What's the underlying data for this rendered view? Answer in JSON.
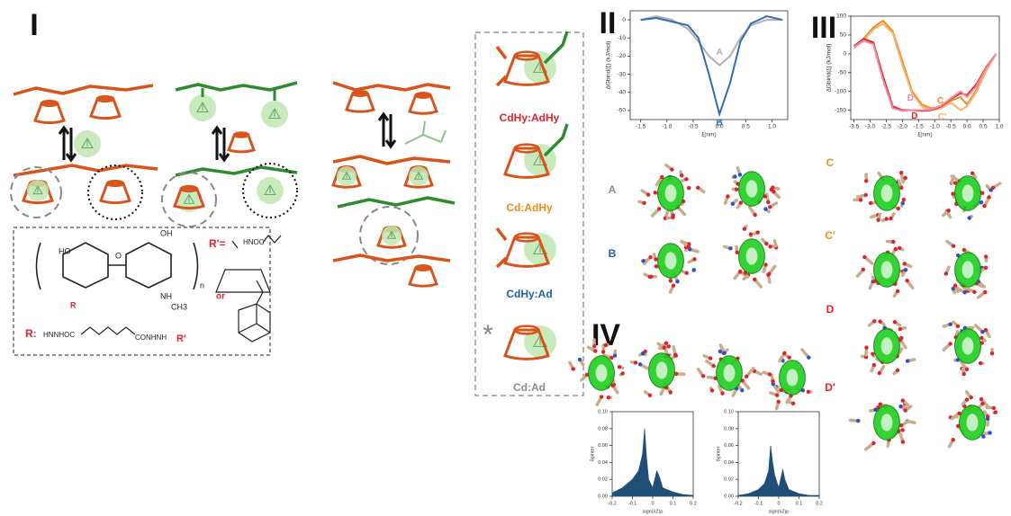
{
  "panel_labels": [
    "I",
    "II",
    "III",
    "IV"
  ],
  "scheme": {
    "r_prime_label": "R′=",
    "r_prime_group": "HNOC",
    "or": "or",
    "r_label": "R:",
    "r_group_left": "HNNHOC",
    "r_group_right": "CONHNH",
    "r_group_end": "R′",
    "sugar_labels": [
      "HO",
      "OH",
      "O",
      "NH",
      "CH3",
      "R",
      "n"
    ]
  },
  "complexes": [
    {
      "label": "CdHy:AdHy",
      "color": "#e3232b"
    },
    {
      "label": "Cd:AdHy",
      "color": "#f08a1c"
    },
    {
      "label": "CdHy:Ad",
      "color": "#1f5fa8"
    },
    {
      "label": "Cd:Ad",
      "color": "#8c8c8c"
    }
  ],
  "asterisk": "*",
  "structure_labels": [
    {
      "label": "A",
      "color": "#8c8c8c"
    },
    {
      "label": "B",
      "color": "#1f5fa8"
    },
    {
      "label": "C",
      "color": "#f08a1c"
    },
    {
      "label": "C′",
      "color": "#f08a1c"
    },
    {
      "label": "D",
      "color": "#e3232b"
    },
    {
      "label": "D′",
      "color": "#e3232b"
    }
  ],
  "chart_data": [
    {
      "type": "line",
      "ylabel": "ΔGbind(ξ) (kJ/mol)",
      "xlabel": "ξ(nm)",
      "x": [
        -1.5,
        -1.2,
        -0.9,
        -0.6,
        -0.4,
        -0.2,
        0,
        0.2,
        0.4,
        0.6,
        0.9,
        1.2
      ],
      "series": [
        {
          "name": "A",
          "color": "#b0b0b0",
          "values": [
            0,
            2,
            0,
            -5,
            -12,
            -20,
            -25,
            -20,
            -10,
            -3,
            0,
            0
          ]
        },
        {
          "name": "B",
          "color": "#2f6db5",
          "values": [
            0,
            1,
            -1,
            -3,
            -10,
            -30,
            -52,
            -35,
            -12,
            -2,
            2,
            0
          ]
        }
      ],
      "xlim": [
        -1.7,
        1.3
      ],
      "ylim": [
        -55,
        5
      ],
      "xticks": [
        -1.5,
        {
          "value": -1,
          "label": "-1.0"
        },
        -0.5,
        {
          "value": 0,
          "label": "0.0"
        },
        0.5,
        {
          "value": 1,
          "label": "1.0"
        }
      ],
      "yticks": [
        0,
        -10,
        -20,
        -30,
        -40,
        -50
      ]
    },
    {
      "type": "line",
      "ylabel": "ΔGbind(ξ) (kJ/mol)",
      "xlabel": "ξ(nm)",
      "x": [
        -3.5,
        -3.2,
        -2.9,
        -2.6,
        -2.3,
        -2.0,
        -1.7,
        -1.4,
        -1.1,
        -0.8,
        -0.5,
        -0.2,
        0,
        0.3,
        0.6,
        0.9
      ],
      "series": [
        {
          "name": "C",
          "color": "#f08a1c",
          "values": [
            20,
            40,
            70,
            88,
            60,
            -20,
            -100,
            -135,
            -145,
            -140,
            -125,
            -115,
            -135,
            -95,
            -40,
            0
          ]
        },
        {
          "name": "C′",
          "color": "#f7b36a",
          "values": [
            15,
            35,
            65,
            80,
            55,
            -30,
            -105,
            -140,
            -150,
            -145,
            -130,
            -150,
            -140,
            -100,
            -45,
            0
          ]
        },
        {
          "name": "D",
          "color": "#e3232b",
          "values": [
            20,
            40,
            30,
            -60,
            -140,
            -150,
            -150,
            -152,
            -150,
            -140,
            -120,
            -105,
            -110,
            -80,
            -35,
            0
          ]
        },
        {
          "name": "D′",
          "color": "#f28aa0",
          "values": [
            18,
            35,
            25,
            -70,
            -145,
            -152,
            -150,
            -150,
            -148,
            -138,
            -118,
            -100,
            -115,
            -85,
            -38,
            0
          ]
        }
      ],
      "xlim": [
        -3.6,
        1.0
      ],
      "ylim": [
        -175,
        100
      ],
      "xticks": [
        -3.5,
        {
          "value": -3,
          "label": "-3.0"
        },
        -2.5,
        {
          "value": -2,
          "label": "-2.0"
        },
        -1.5,
        {
          "value": -1,
          "label": "-1.0"
        },
        -0.5,
        {
          "value": 0,
          "label": "0.0"
        },
        0.5,
        {
          "value": 1,
          "label": "1.0"
        }
      ],
      "yticks": [
        100,
        50,
        0,
        -50,
        -100,
        -150
      ]
    },
    {
      "type": "area",
      "ylabel": "δginter",
      "xlabel": "sign(λ2)ρ",
      "x": [
        -0.2,
        -0.15,
        -0.1,
        -0.07,
        -0.05,
        -0.04,
        -0.03,
        -0.02,
        0,
        0.02,
        0.03,
        0.05,
        0.1,
        0.15,
        0.2
      ],
      "series": [
        {
          "color": "#1f4e79",
          "values": [
            0.004,
            0.01,
            0.02,
            0.03,
            0.05,
            0.08,
            0.045,
            0.02,
            0.01,
            0.03,
            0.025,
            0.01,
            0.005,
            0.002,
            0.001
          ]
        }
      ],
      "xlim": [
        -0.2,
        0.2
      ],
      "ylim": [
        0,
        0.1
      ],
      "xticks": [
        -0.2,
        -0.1,
        0,
        0.1,
        0.2
      ],
      "yticks": [
        {
          "value": 0,
          "label": "0.00"
        },
        0.02,
        0.04,
        0.06,
        0.08,
        {
          "value": 0.1,
          "label": "0.10"
        }
      ]
    },
    {
      "type": "area",
      "ylabel": "δginter",
      "xlabel": "sign(λ2)ρ",
      "x": [
        -0.2,
        -0.15,
        -0.1,
        -0.07,
        -0.05,
        -0.04,
        -0.03,
        -0.02,
        0,
        0.02,
        0.03,
        0.05,
        0.1,
        0.15,
        0.2
      ],
      "series": [
        {
          "color": "#1f4e79",
          "values": [
            0.001,
            0.003,
            0.008,
            0.015,
            0.03,
            0.06,
            0.04,
            0.025,
            0.01,
            0.032,
            0.02,
            0.008,
            0.003,
            0.001,
            0.001
          ]
        }
      ],
      "xlim": [
        -0.2,
        0.2
      ],
      "ylim": [
        0,
        0.1
      ],
      "xticks": [
        -0.2,
        -0.1,
        0,
        0.1,
        0.2
      ],
      "yticks": [
        {
          "value": 0,
          "label": "0.00"
        },
        0.02,
        0.04,
        0.06,
        0.08,
        {
          "value": 0.1,
          "label": "0.10"
        }
      ]
    }
  ]
}
